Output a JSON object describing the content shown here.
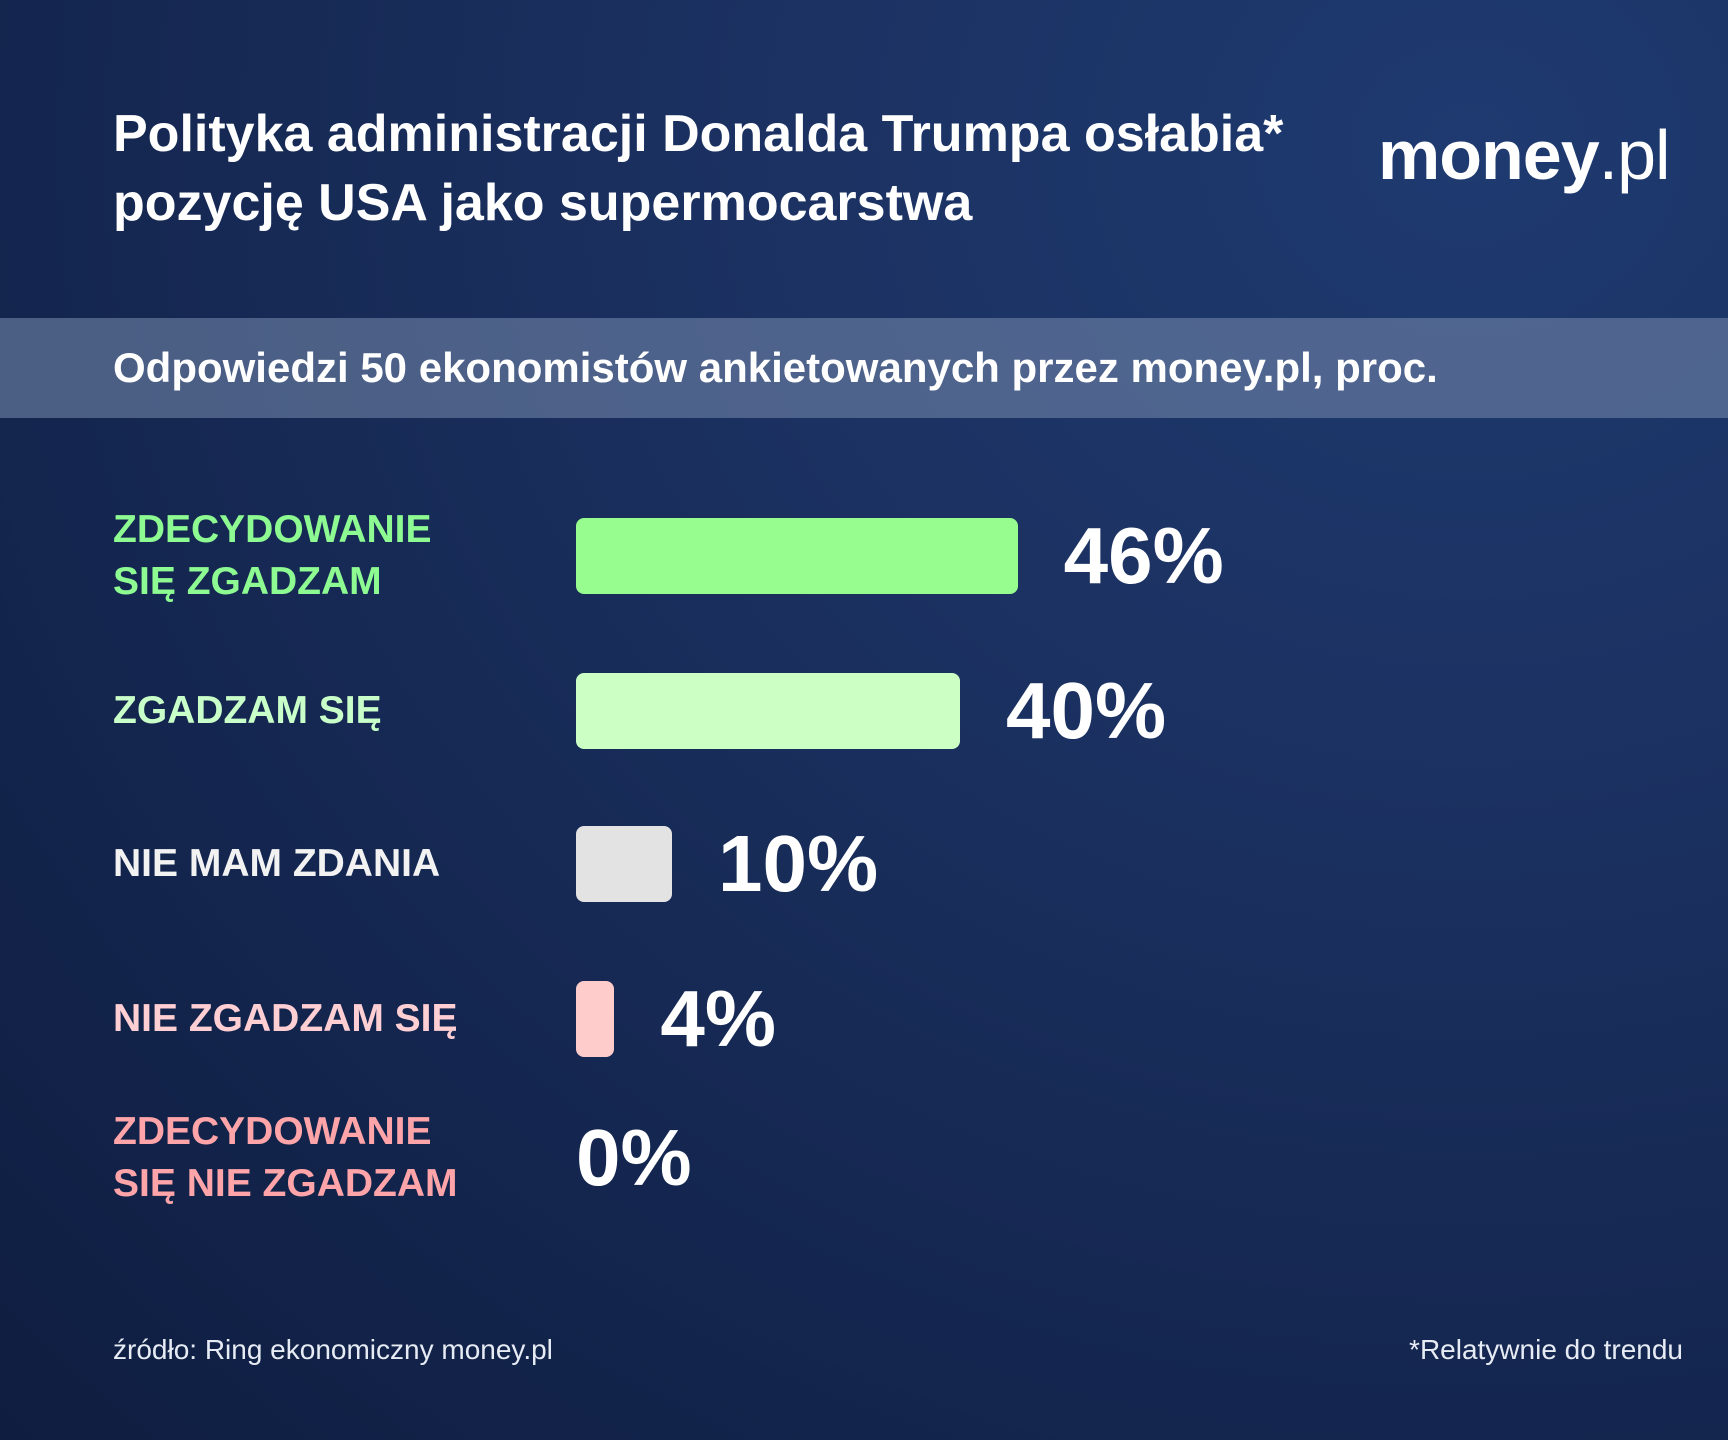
{
  "header": {
    "title_line1": "Polityka administracji Donalda Trumpa osłabia*",
    "title_line2": "pozycję USA jako supermocarstwa",
    "logo_main": "money",
    "logo_tld": ".pl",
    "subtitle": "Odpowiedzi 50 ekonomistów ankietowanych przez money.pl, proc."
  },
  "chart_data": {
    "type": "bar",
    "orientation": "horizontal",
    "title": "Polityka administracji Donalda Trumpa osłabia* pozycję USA jako supermocarstwa",
    "subtitle": "Odpowiedzi 50 ekonomistów ankietowanych przez money.pl, proc.",
    "unit": "%",
    "categories": [
      [
        "ZDECYDOWANIE",
        "SIĘ ZGADZAM"
      ],
      [
        "ZGADZAM SIĘ"
      ],
      [
        "NIE MAM ZDANIA"
      ],
      [
        "NIE ZGADZAM SIĘ"
      ],
      [
        "ZDECYDOWANIE",
        "SIĘ NIE ZGADZAM"
      ]
    ],
    "values": [
      46,
      40,
      10,
      4,
      0
    ],
    "value_labels": [
      "46%",
      "40%",
      "10%",
      "4%",
      "0%"
    ],
    "colors": [
      "#96fd8e",
      "#cbffc4",
      "#e3e3e3",
      "#ffcccc",
      "#ff9e9e"
    ],
    "label_colors": [
      "#8dfb92",
      "#c9ffc8",
      "#f2f2f2",
      "#ffcfd4",
      "#ffa4a8"
    ],
    "xlim": [
      0,
      100
    ],
    "grid": false,
    "legend": "none"
  },
  "footer": {
    "source": "źródło: Ring ekonomiczny money.pl",
    "note": "*Relatywnie do trendu"
  }
}
